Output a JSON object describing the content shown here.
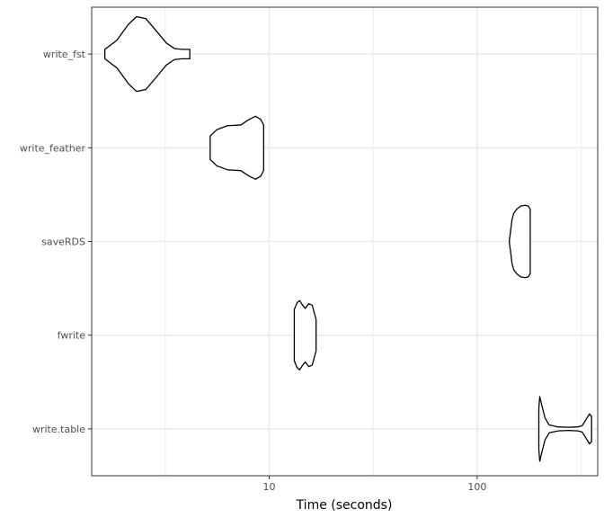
{
  "chart_data": {
    "type": "violin",
    "orientation": "horizontal",
    "title": "",
    "xlabel": "Time (seconds)",
    "ylabel": "",
    "x_scale": "log10",
    "xlim": [
      1.4,
      380
    ],
    "x_major_ticks": [
      10,
      100
    ],
    "x_tick_labels": [
      "10",
      "100"
    ],
    "x_minor_ticks": [
      3.16,
      31.6,
      316
    ],
    "grid": true,
    "legend": "none",
    "categories": [
      "write_fst",
      "write_feather",
      "saveRDS",
      "fwrite",
      "write.table"
    ],
    "series": [
      {
        "category": "write_fst",
        "min": 1.62,
        "max": 4.15,
        "profile": [
          [
            1.62,
            0.12
          ],
          [
            1.85,
            0.35
          ],
          [
            2.1,
            0.75
          ],
          [
            2.3,
            0.95
          ],
          [
            2.55,
            0.9
          ],
          [
            2.85,
            0.6
          ],
          [
            3.2,
            0.28
          ],
          [
            3.5,
            0.14
          ],
          [
            3.8,
            0.12
          ],
          [
            4.15,
            0.12
          ]
        ]
      },
      {
        "category": "write_feather",
        "min": 5.2,
        "max": 9.4,
        "profile": [
          [
            5.2,
            0.3
          ],
          [
            5.6,
            0.46
          ],
          [
            6.3,
            0.56
          ],
          [
            7.3,
            0.58
          ],
          [
            8.0,
            0.72
          ],
          [
            8.6,
            0.8
          ],
          [
            9.1,
            0.72
          ],
          [
            9.4,
            0.58
          ]
        ]
      },
      {
        "category": "saveRDS",
        "min": 143,
        "max": 180,
        "profile": [
          [
            143,
            0.05
          ],
          [
            145,
            0.28
          ],
          [
            147,
            0.55
          ],
          [
            150,
            0.72
          ],
          [
            155,
            0.82
          ],
          [
            162,
            0.9
          ],
          [
            170,
            0.92
          ],
          [
            176,
            0.9
          ],
          [
            180,
            0.82
          ]
        ]
      },
      {
        "category": "fwrite",
        "min": 13.2,
        "max": 16.8,
        "profile": [
          [
            13.2,
            0.65
          ],
          [
            13.6,
            0.82
          ],
          [
            14.0,
            0.88
          ],
          [
            14.4,
            0.78
          ],
          [
            14.9,
            0.68
          ],
          [
            15.5,
            0.8
          ],
          [
            16.1,
            0.76
          ],
          [
            16.5,
            0.55
          ],
          [
            16.8,
            0.4
          ]
        ]
      },
      {
        "category": "write.table",
        "min": 198,
        "max": 355,
        "profile": [
          [
            198,
            0.52
          ],
          [
            200,
            0.82
          ],
          [
            205,
            0.58
          ],
          [
            212,
            0.28
          ],
          [
            222,
            0.1
          ],
          [
            245,
            0.05
          ],
          [
            275,
            0.04
          ],
          [
            305,
            0.05
          ],
          [
            320,
            0.08
          ],
          [
            335,
            0.25
          ],
          [
            347,
            0.38
          ],
          [
            355,
            0.32
          ]
        ]
      }
    ]
  },
  "colors": {
    "panel_border": "#333333",
    "grid": "#ebebeb",
    "violin_stroke": "#000000",
    "tick_text": "#4d4d4d"
  }
}
